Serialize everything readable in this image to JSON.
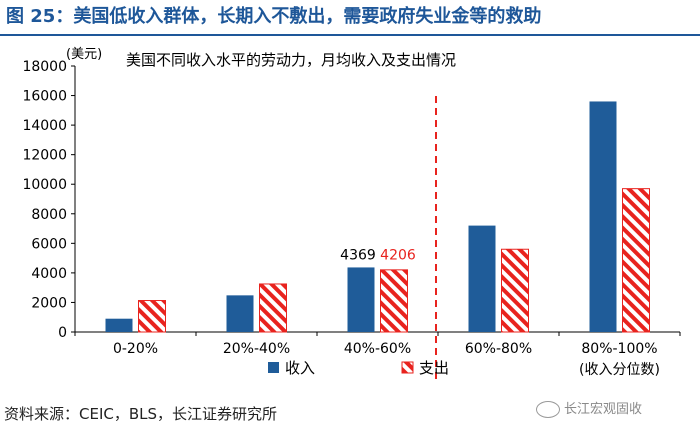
{
  "figure": {
    "title": "图 25：美国低收入群体，长期入不敷出，需要政府失业金等的救助",
    "source": "资料来源：CEIC，BLS，长江证券研究所",
    "watermark": "长江宏观固收"
  },
  "colors": {
    "income": "#1f5c99",
    "expense_stripe": "#e8231e",
    "divider": "#e8231e",
    "title": "#1e5799",
    "axis": "#000000"
  },
  "chart_data": {
    "type": "bar",
    "title": "美国不同收入水平的劳动力，月均收入及支出情况",
    "unit_label": "(美元)",
    "categories": [
      "0-20%",
      "20%-40%",
      "40%-60%",
      "60%-80%",
      "80%-100%"
    ],
    "category_note": "(收入分位数)",
    "series": [
      {
        "name": "收入",
        "values": [
          900,
          2480,
          4369,
          7200,
          15600
        ]
      },
      {
        "name": "支出",
        "values": [
          2130,
          3250,
          4206,
          5600,
          9700
        ]
      }
    ],
    "data_labels": {
      "category_index": 2,
      "labels": [
        "4369",
        "4206"
      ]
    },
    "ylim": [
      0,
      18000
    ],
    "yticks": [
      0,
      2000,
      4000,
      6000,
      8000,
      10000,
      12000,
      14000,
      16000,
      18000
    ],
    "divider_after_category": 2,
    "grid": false,
    "legend": "bottom"
  }
}
